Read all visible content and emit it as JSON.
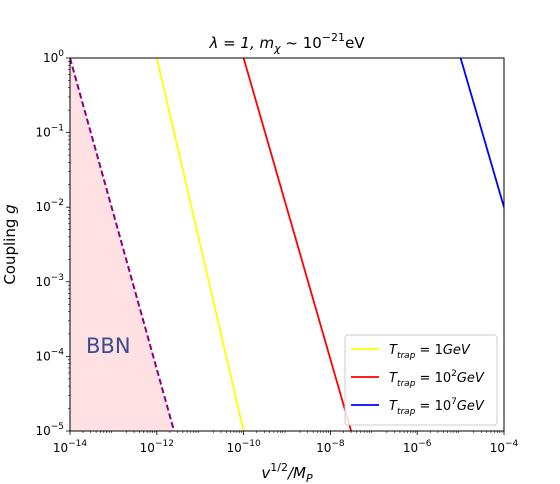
{
  "chart_data": {
    "type": "line",
    "title": {
      "main": "λ = 1, m",
      "sub": "χ",
      "mid": " ~ 10",
      "sup": "−21",
      "tail": "eV"
    },
    "xlabel": {
      "base": "v",
      "sup": "1/2",
      "mid": "/M",
      "sub": "P"
    },
    "ylabel": {
      "pre": "Coupling ",
      "italic": "g"
    },
    "xscale": "log",
    "yscale": "log",
    "xlim": [
      1e-14,
      0.0001
    ],
    "ylim": [
      1e-05,
      1
    ],
    "x_ticks": [
      {
        "value": 1e-14,
        "base": "10",
        "exp": "−14"
      },
      {
        "value": 1e-12,
        "base": "10",
        "exp": "−12"
      },
      {
        "value": 1e-10,
        "base": "10",
        "exp": "−10"
      },
      {
        "value": 1e-08,
        "base": "10",
        "exp": "−8"
      },
      {
        "value": 1e-06,
        "base": "10",
        "exp": "−6"
      },
      {
        "value": 0.0001,
        "base": "10",
        "exp": "−4"
      }
    ],
    "y_ticks": [
      {
        "value": 1e-05,
        "base": "10",
        "exp": "−5"
      },
      {
        "value": 0.0001,
        "base": "10",
        "exp": "−4"
      },
      {
        "value": 0.001,
        "base": "10",
        "exp": "−3"
      },
      {
        "value": 0.01,
        "base": "10",
        "exp": "−2"
      },
      {
        "value": 0.1,
        "base": "10",
        "exp": "−1"
      },
      {
        "value": 1,
        "base": "10",
        "exp": "0"
      }
    ],
    "series": [
      {
        "name": {
          "T": "T",
          "sub": "trap",
          "eq": " = 1",
          "sup": "",
          "unit": "GeV"
        },
        "color": "#ffff00",
        "points": [
          [
            1e-12,
            1
          ],
          [
            1e-10,
            1e-05
          ]
        ]
      },
      {
        "name": {
          "T": "T",
          "sub": "trap",
          "eq": " = 10",
          "sup": "2",
          "unit": "GeV"
        },
        "color": "#ff0000",
        "points": [
          [
            1e-10,
            1
          ],
          [
            3e-08,
            1e-05
          ]
        ]
      },
      {
        "name": {
          "T": "T",
          "sub": "trap",
          "eq": " = 10",
          "sup": "7",
          "unit": "GeV"
        },
        "color": "#0000ff",
        "points": [
          [
            1e-05,
            1
          ],
          [
            0.0001,
            0.01
          ]
        ]
      }
    ],
    "region": {
      "label": "BBN",
      "fill": "#ffe0e3",
      "edge_color": "#8b0080",
      "edge_style": "dashed",
      "boundary": [
        [
          1e-14,
          1
        ],
        [
          2.5e-12,
          1e-05
        ]
      ]
    },
    "legend": {
      "position": "lower-right"
    }
  }
}
